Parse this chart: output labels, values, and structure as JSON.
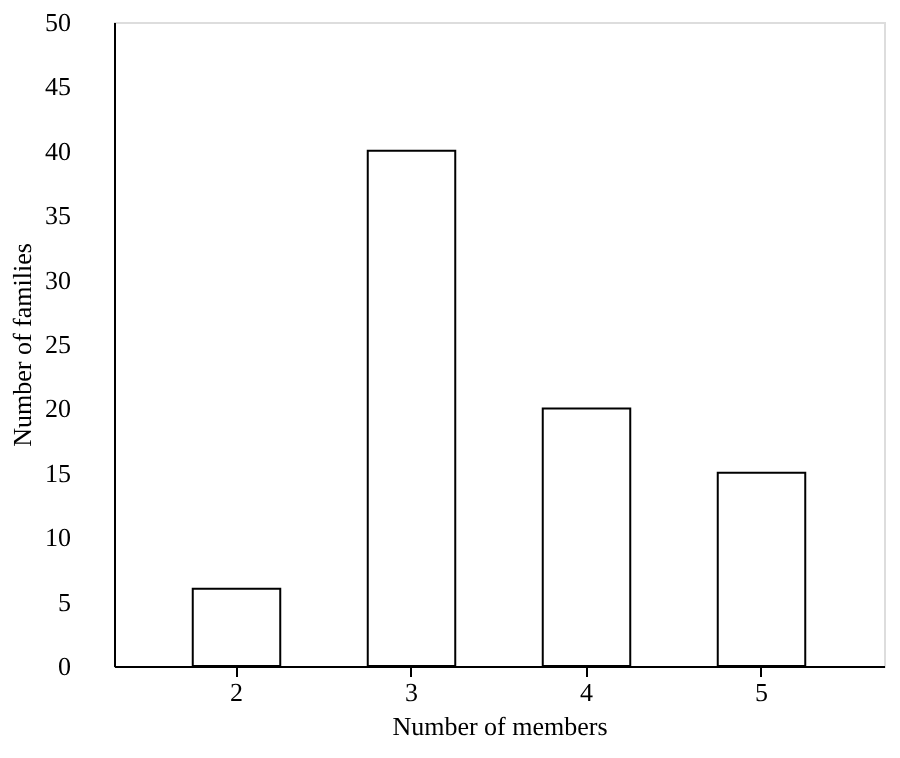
{
  "chart_data": {
    "type": "bar",
    "xlabel": "Number of members",
    "ylabel": "Number of families",
    "categories": [
      "2",
      "3",
      "4",
      "5"
    ],
    "values": [
      6,
      40,
      20,
      15
    ],
    "color": "#ffffff",
    "ylim": [
      0,
      50
    ],
    "yticks": [
      0,
      5,
      10,
      15,
      20,
      25,
      30,
      35,
      40,
      45,
      50
    ],
    "grid": false
  }
}
